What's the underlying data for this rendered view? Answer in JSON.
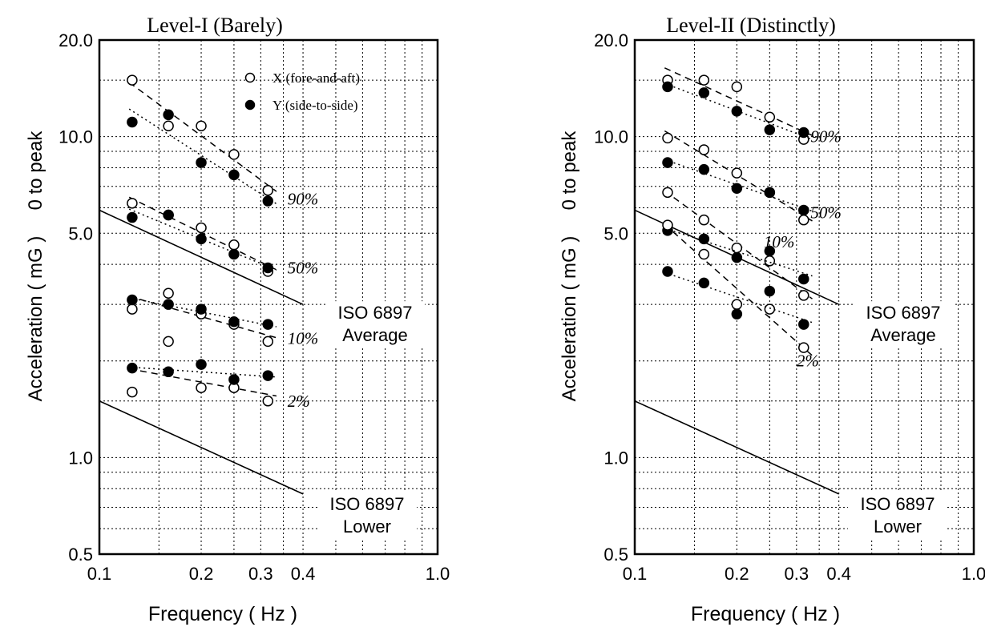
{
  "figure": {
    "ylabel_main": "Acceleration ( mG )",
    "ylabel_side": "0 to peak",
    "xlabel": "Frequency  ( Hz )"
  },
  "chart_data": [
    {
      "type": "scatter",
      "title": "Level-I (Barely)",
      "xlabel": "Frequency  ( Hz )",
      "ylabel": "Acceleration ( mG )  0 to peak",
      "xscale": "log",
      "yscale": "log",
      "xlim": [
        0.1,
        1.0
      ],
      "ylim": [
        0.5,
        20.0
      ],
      "xticks": [
        0.1,
        0.2,
        0.3,
        0.4,
        1.0
      ],
      "xtick_labels": [
        "0.1",
        "0.2",
        "0.3",
        "0.4",
        "1.0"
      ],
      "yticks": [
        0.5,
        1.0,
        5.0,
        10.0,
        20.0
      ],
      "ytick_labels": [
        "0.5",
        "1.0",
        "5.0",
        "10.0",
        "20.0"
      ],
      "grid": true,
      "legend": {
        "position": "top-right",
        "entries": [
          {
            "label": "X (fore-and-aft)",
            "marker": "open-circle"
          },
          {
            "label": "Y (side-to-side)",
            "marker": "filled-circle"
          }
        ]
      },
      "series": [
        {
          "name": "X (fore-and-aft)",
          "group": "90%",
          "marker": "open",
          "x": [
            0.125,
            0.16,
            0.2,
            0.25,
            0.315
          ],
          "y": [
            15.0,
            10.8,
            10.8,
            8.8,
            6.8
          ]
        },
        {
          "name": "Y (side-to-side)",
          "group": "90%",
          "marker": "filled",
          "x": [
            0.125,
            0.16,
            0.2,
            0.25,
            0.315
          ],
          "y": [
            11.1,
            11.7,
            8.3,
            7.6,
            6.3
          ]
        },
        {
          "name": "X (fore-and-aft)",
          "group": "50%",
          "marker": "open",
          "x": [
            0.125,
            0.16,
            0.2,
            0.25,
            0.315
          ],
          "y": [
            6.2,
            5.7,
            5.2,
            4.6,
            3.8
          ]
        },
        {
          "name": "Y (side-to-side)",
          "group": "50%",
          "marker": "filled",
          "x": [
            0.125,
            0.16,
            0.2,
            0.25,
            0.315
          ],
          "y": [
            5.6,
            5.7,
            4.8,
            4.3,
            3.9
          ]
        },
        {
          "name": "X (fore-and-aft)",
          "group": "10%",
          "marker": "open",
          "x": [
            0.125,
            0.16,
            0.2,
            0.25,
            0.315
          ],
          "y": [
            2.9,
            3.25,
            2.8,
            2.6,
            2.3
          ]
        },
        {
          "name": "Y (side-to-side)",
          "group": "10%",
          "marker": "filled",
          "x": [
            0.125,
            0.16,
            0.2,
            0.25,
            0.315
          ],
          "y": [
            3.1,
            3.0,
            2.9,
            2.65,
            2.6
          ]
        },
        {
          "name": "X (fore-and-aft)",
          "group": "2%",
          "marker": "open",
          "x": [
            0.125,
            0.16,
            0.2,
            0.25,
            0.315
          ],
          "y": [
            1.6,
            2.3,
            1.65,
            1.65,
            1.5
          ]
        },
        {
          "name": "Y (side-to-side)",
          "group": "2%",
          "marker": "filled",
          "x": [
            0.125,
            0.16,
            0.2,
            0.25,
            0.315
          ],
          "y": [
            1.9,
            1.85,
            1.95,
            1.75,
            1.8
          ]
        }
      ],
      "reference_lines": [
        {
          "label_line1": "ISO 6897",
          "label_line2": "Average",
          "x": [
            0.1,
            0.4
          ],
          "y": [
            5.9,
            3.0
          ]
        },
        {
          "label_line1": "ISO 6897",
          "label_line2": "Lower",
          "x": [
            0.1,
            0.4
          ],
          "y": [
            1.5,
            0.77
          ]
        }
      ],
      "annotations": [
        {
          "text": "90%",
          "x": 0.36,
          "y": 6.4
        },
        {
          "text": "50%",
          "x": 0.36,
          "y": 3.9
        },
        {
          "text": "10%",
          "x": 0.36,
          "y": 2.35
        },
        {
          "text": "2%",
          "x": 0.36,
          "y": 1.5
        }
      ]
    },
    {
      "type": "scatter",
      "title": "Level-II (Distinctly)",
      "xlabel": "Frequency  ( Hz )",
      "ylabel": "Acceleration ( mG )  0 to peak",
      "xscale": "log",
      "yscale": "log",
      "xlim": [
        0.1,
        1.0
      ],
      "ylim": [
        0.5,
        20.0
      ],
      "xticks": [
        0.1,
        0.2,
        0.3,
        0.4,
        1.0
      ],
      "xtick_labels": [
        "0.1",
        "0.2",
        "0.3",
        "0.4",
        "1.0"
      ],
      "yticks": [
        0.5,
        1.0,
        5.0,
        10.0,
        20.0
      ],
      "ytick_labels": [
        "0.5",
        "1.0",
        "5.0",
        "10.0",
        "20.0"
      ],
      "grid": true,
      "series": [
        {
          "name": "X (fore-and-aft)",
          "group": "90%",
          "marker": "open",
          "x": [
            0.125,
            0.16,
            0.2,
            0.25,
            0.315
          ],
          "y": [
            15.0,
            15.0,
            14.3,
            11.5,
            9.8
          ]
        },
        {
          "name": "Y (side-to-side)",
          "group": "90%",
          "marker": "filled",
          "x": [
            0.125,
            0.16,
            0.2,
            0.25,
            0.315
          ],
          "y": [
            14.3,
            13.7,
            12.0,
            10.5,
            10.3
          ]
        },
        {
          "name": "X (fore-and-aft)",
          "group": "50%",
          "marker": "open",
          "x": [
            0.125,
            0.16,
            0.2,
            0.25,
            0.315
          ],
          "y": [
            9.9,
            9.1,
            7.7,
            6.7,
            5.5
          ]
        },
        {
          "name": "Y (side-to-side)",
          "group": "50%",
          "marker": "filled",
          "x": [
            0.125,
            0.16,
            0.2,
            0.25,
            0.315
          ],
          "y": [
            8.3,
            7.9,
            6.9,
            6.7,
            5.9
          ]
        },
        {
          "name": "X (fore-and-aft)",
          "group": "10%",
          "marker": "open",
          "x": [
            0.125,
            0.16,
            0.2,
            0.25,
            0.315
          ],
          "y": [
            6.7,
            5.5,
            4.5,
            4.1,
            3.2
          ]
        },
        {
          "name": "Y (side-to-side)",
          "group": "10%",
          "marker": "filled",
          "x": [
            0.125,
            0.16,
            0.2,
            0.25,
            0.315
          ],
          "y": [
            5.1,
            4.8,
            4.2,
            4.4,
            3.6
          ]
        },
        {
          "name": "X (fore-and-aft)",
          "group": "2%",
          "marker": "open",
          "x": [
            0.125,
            0.16,
            0.2,
            0.25,
            0.315
          ],
          "y": [
            5.3,
            4.3,
            3.0,
            2.9,
            2.2
          ]
        },
        {
          "name": "Y (side-to-side)",
          "group": "2%",
          "marker": "filled",
          "x": [
            0.125,
            0.16,
            0.2,
            0.25,
            0.315
          ],
          "y": [
            3.8,
            3.5,
            2.8,
            3.3,
            2.6
          ]
        }
      ],
      "reference_lines": [
        {
          "label_line1": "ISO 6897",
          "label_line2": "Average",
          "x": [
            0.1,
            0.4
          ],
          "y": [
            5.9,
            3.0
          ]
        },
        {
          "label_line1": "ISO 6897",
          "label_line2": "Lower",
          "x": [
            0.1,
            0.4
          ],
          "y": [
            1.5,
            0.77
          ]
        }
      ],
      "annotations": [
        {
          "text": "90%",
          "x": 0.33,
          "y": 10.0
        },
        {
          "text": "50%",
          "x": 0.33,
          "y": 5.8
        },
        {
          "text": "10%",
          "x": 0.24,
          "y": 4.7
        },
        {
          "text": "2%",
          "x": 0.3,
          "y": 2.0
        }
      ]
    }
  ]
}
